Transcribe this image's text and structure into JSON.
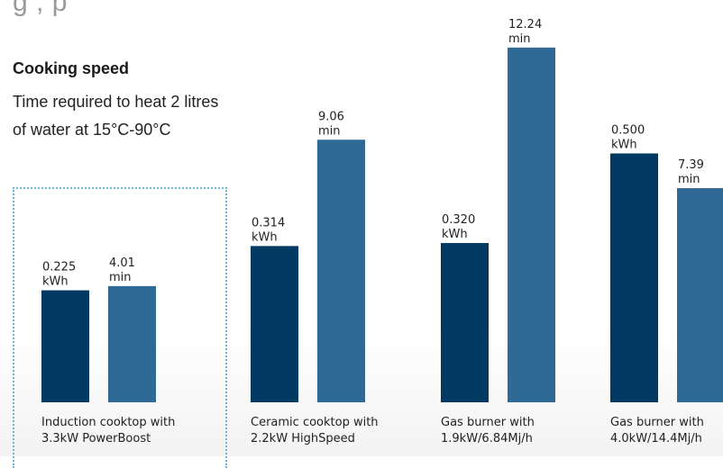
{
  "header": {
    "title": "Cooking speed",
    "subtitle_line1": "Time required to heat 2 litres",
    "subtitle_line2": "of water at 15°C-90°C"
  },
  "colors": {
    "energy": "#003a63",
    "time": "#2f6a96",
    "highlight": "#6fb3d8"
  },
  "chart_data": {
    "type": "bar",
    "title": "Cooking speed",
    "subtitle": "Time required to heat 2 litres of water at 15°C-90°C",
    "categories": [
      [
        "Induction cooktop with",
        "3.3kW PowerBoost"
      ],
      [
        "Ceramic cooktop with",
        "2.2kW HighSpeed"
      ],
      [
        "Gas burner with",
        "1.9kW/6.84Mj/h"
      ],
      [
        "Gas burner with",
        "4.0kW/14.4Mj/h"
      ]
    ],
    "series": [
      {
        "unit": "kWh",
        "values": [
          0.225,
          0.314,
          0.32,
          0.5
        ],
        "labels": [
          "0.225",
          "0.314",
          "0.320",
          "0.500"
        ]
      },
      {
        "unit": "min",
        "values": [
          4.01,
          9.06,
          12.24,
          7.39
        ],
        "labels": [
          "4.01",
          "9.06",
          "12.24",
          "7.39"
        ]
      }
    ],
    "highlighted_category": 0
  }
}
